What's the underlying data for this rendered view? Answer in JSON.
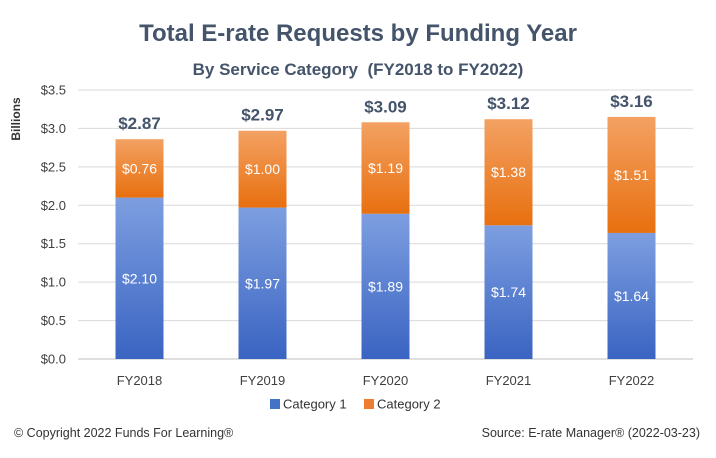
{
  "chart_data": {
    "type": "bar",
    "stacked": true,
    "title": "Total E-rate Requests by Funding Year",
    "subtitle": "By Service Category  (FY2018 to FY2022)",
    "ylabel": "Billions",
    "xlabel": "",
    "ylim": [
      0,
      3.5
    ],
    "yticks": [
      "$0.0",
      "$0.5",
      "$1.0",
      "$1.5",
      "$2.0",
      "$2.5",
      "$3.0",
      "$3.5"
    ],
    "categories": [
      "FY2018",
      "FY2019",
      "FY2020",
      "FY2021",
      "FY2022"
    ],
    "series": [
      {
        "name": "Category 1",
        "values": [
          2.1,
          1.97,
          1.89,
          1.74,
          1.64
        ],
        "labels": [
          "$2.10",
          "$1.97",
          "$1.89",
          "$1.74",
          "$1.64"
        ],
        "color": "#4472c4"
      },
      {
        "name": "Category 2",
        "values": [
          0.76,
          1.0,
          1.19,
          1.38,
          1.51
        ],
        "labels": [
          "$0.76",
          "$1.00",
          "$1.19",
          "$1.38",
          "$1.51"
        ],
        "color": "#ed7d31"
      }
    ],
    "totals": [
      "$2.87",
      "$2.97",
      "$3.09",
      "$3.12",
      "$3.16"
    ],
    "grid": true,
    "legend": "bottom"
  },
  "footer": {
    "copyright": "© Copyright 2022 Funds For Learning®",
    "source": "Source: E-rate Manager® (2022-03-23)"
  }
}
